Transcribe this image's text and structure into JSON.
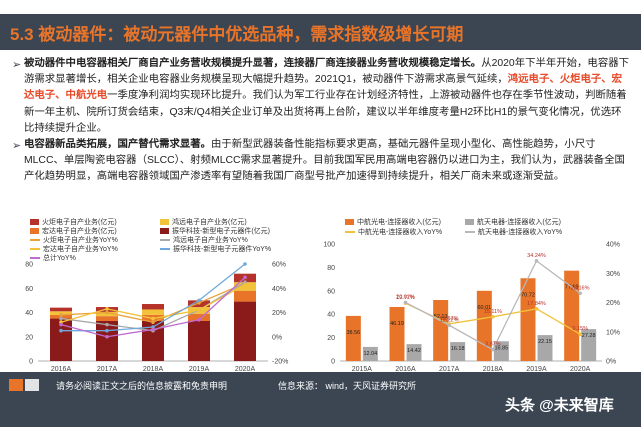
{
  "header": {
    "title": "5.3 被动器件：被动元器件中优选品种，需求指数级增长可期"
  },
  "paragraph1": {
    "bold": "被动器件中电容器相关厂商自产业务营收规模提升显著，连接器厂商连接器业务营收规模稳定增长。",
    "text_a": "从2020年下半年开始，电容器下游需求显著增长，相关企业电容器业务规模呈现大幅提升趋势。2021Q1，被动器件下游需求高景气延续，",
    "companies": "鸿远电子、火炬电子、宏达电子、中航光电",
    "text_b": "一季度净利润均实现环比提升。我们认为军工行业存在计划经济特性，上游被动器件也存在季节性波动，判断随着新一年主机、院所订货会结束，Q3末/Q4相关企业订单及出货将再上台阶，建议以半年维度考量H2环比H1的景气变化情况，优选环比持续提升企业。"
  },
  "paragraph2": {
    "bold": "电容器新品类拓展，国产替代需求显著。",
    "text": "由于新型武器装备性能指标要求更高，基础元器件呈现小型化、高性能趋势，小尺寸MLCC、单层陶瓷电容器（SLCC）、射频MLCC需求显著提升。目前我国军民用高端电容器仍以进口为主，我们认为，武器装备全国产化趋势明显，高端电容器领域国产渗透率有望随着我国厂商型号批产加速得到持续提升，相关厂商未来或逐渐受益。"
  },
  "chart_left": {
    "legend": [
      {
        "label": "火炬电子自产业务(亿元)",
        "color": "#b5322a",
        "kind": "bar"
      },
      {
        "label": "鸿远电子自产业务(亿元)",
        "color": "#f2c23a",
        "kind": "bar"
      },
      {
        "label": "宏达电子自产业务(亿元)",
        "color": "#e8742a",
        "kind": "bar"
      },
      {
        "label": "振华科技-新型电子元器件(亿元)",
        "color": "#8b1a1a",
        "kind": "bar"
      },
      {
        "label": "火炬电子自产业务YoY%",
        "color": "#e8a23a",
        "kind": "line"
      },
      {
        "label": "鸿远电子自产业务YoY%",
        "color": "#a8a8a8",
        "kind": "line"
      },
      {
        "label": "宏达电子自产业务YoY%",
        "color": "#f2c23a",
        "kind": "line"
      },
      {
        "label": "振华科技-新型电子元器件YoY%",
        "color": "#6fa8dc",
        "kind": "line"
      },
      {
        "label": "总计YoY%",
        "color": "#c06bd0",
        "kind": "line"
      }
    ],
    "y_left_ticks": [
      "0",
      "20",
      "40",
      "60",
      "80"
    ],
    "y_right_ticks": [
      "-20%",
      "0%",
      "20%",
      "40%",
      "60%"
    ]
  },
  "chart_right": {
    "legend": [
      {
        "label": "中航光电-连接器收入(亿元)",
        "color": "#e8742a",
        "kind": "bar"
      },
      {
        "label": "航天电器-连接器收入(亿元)",
        "color": "#a8a8a8",
        "kind": "bar"
      },
      {
        "label": "中航光电-连接器收入YoY%",
        "color": "#f2c23a",
        "kind": "line"
      },
      {
        "label": "航天电器-连接器收入YoY%",
        "color": "#b8b8b8",
        "kind": "line"
      }
    ],
    "y_left_ticks": [
      "0",
      "20",
      "40",
      "60",
      "80",
      "100"
    ],
    "y_right_ticks": [
      "0%",
      "10%",
      "20%",
      "30%",
      "40%"
    ]
  },
  "chart_data": [
    {
      "type": "bar",
      "stacked": true,
      "categories": [
        "2016A",
        "2017A",
        "2018A",
        "2019A",
        "2020A"
      ],
      "ylim": [
        0,
        80
      ],
      "y2lim": [
        -20,
        60
      ],
      "series": [
        {
          "name": "火炬电子自产业务(亿元)",
          "kind": "bar",
          "color": "#b5322a",
          "values": [
            3,
            4,
            4.5,
            5.5,
            7
          ]
        },
        {
          "name": "鸿远电子自产业务(亿元)",
          "kind": "bar",
          "color": "#f2c23a",
          "values": [
            3,
            3.5,
            4.5,
            5.5,
            7
          ]
        },
        {
          "name": "宏达电子自产业务(亿元)",
          "kind": "bar",
          "color": "#e8742a",
          "values": [
            3,
            4,
            5,
            6,
            9
          ]
        },
        {
          "name": "振华科技-新型电子元器件(亿元)",
          "kind": "bar",
          "color": "#8b1a1a",
          "values": [
            35,
            33,
            33,
            33,
            49
          ]
        },
        {
          "name": "火炬电子自产业务YoY%",
          "kind": "line",
          "color": "#e8a23a",
          "values": [
            18,
            20,
            12,
            28,
            44
          ]
        },
        {
          "name": "鸿远电子自产业务YoY%",
          "kind": "line",
          "color": "#a8a8a8",
          "values": [
            15,
            10,
            5,
            22,
            45
          ]
        },
        {
          "name": "宏达电子自产业务YoY%",
          "kind": "line",
          "color": "#f2c23a",
          "values": [
            12,
            23,
            15,
            22,
            43
          ]
        },
        {
          "name": "振华科技-新型电子元器件YoY%",
          "kind": "line",
          "color": "#6fa8dc",
          "values": [
            5,
            5,
            8,
            30,
            60
          ]
        },
        {
          "name": "总计YoY%",
          "kind": "line",
          "color": "#c06bd0",
          "values": [
            10,
            0,
            6,
            14,
            49
          ]
        }
      ]
    },
    {
      "type": "bar",
      "categories": [
        "2015A",
        "2016A",
        "2017A",
        "2018A",
        "2019A",
        "2020A"
      ],
      "ylim": [
        0,
        100
      ],
      "y2lim": [
        0,
        40
      ],
      "series": [
        {
          "name": "中航光电-连接器收入(亿元)",
          "kind": "bar",
          "color": "#e8742a",
          "values": [
            38.56,
            46.19,
            52.13,
            60.01,
            70.72,
            77.19
          ]
        },
        {
          "name": "航天电器-连接器收入(亿元)",
          "kind": "bar",
          "color": "#a8a8a8",
          "values": [
            12.04,
            14.42,
            16.18,
            16.85,
            22.15,
            27.28
          ]
        },
        {
          "name": "中航光电-连接器收入YoY%",
          "kind": "line",
          "color": "#f2c23a",
          "values": [
            null,
            19.77,
            12.67,
            15.11,
            17.84,
            9.15
          ]
        },
        {
          "name": "航天电器-连接器收入YoY%",
          "kind": "line",
          "color": "#b8b8b8",
          "values": [
            null,
            20.02,
            12.22,
            3.87,
            34.24,
            23.16
          ]
        }
      ],
      "data_labels": {
        "bar_a": [
          "38.56",
          "46.19",
          "52.13",
          "60.01",
          "70.72",
          "77.19"
        ],
        "bar_b": [
          "12.04",
          "14.42",
          "16.18",
          "16.85",
          "22.15",
          "27.28"
        ],
        "line_a": [
          "",
          "19.77%",
          "12.67%",
          "15.11%",
          "17.84%",
          "9.15%"
        ],
        "line_b": [
          "",
          "20.02%",
          "12.22%",
          "3.87%",
          "34.24%",
          "23.16%"
        ]
      }
    }
  ],
  "footer": {
    "disclaimer": "请务必阅读正文之后的信息披露和免责申明",
    "source": "信息来源： wind，天风证券研究所",
    "watermark": "头条 @未来智库"
  }
}
